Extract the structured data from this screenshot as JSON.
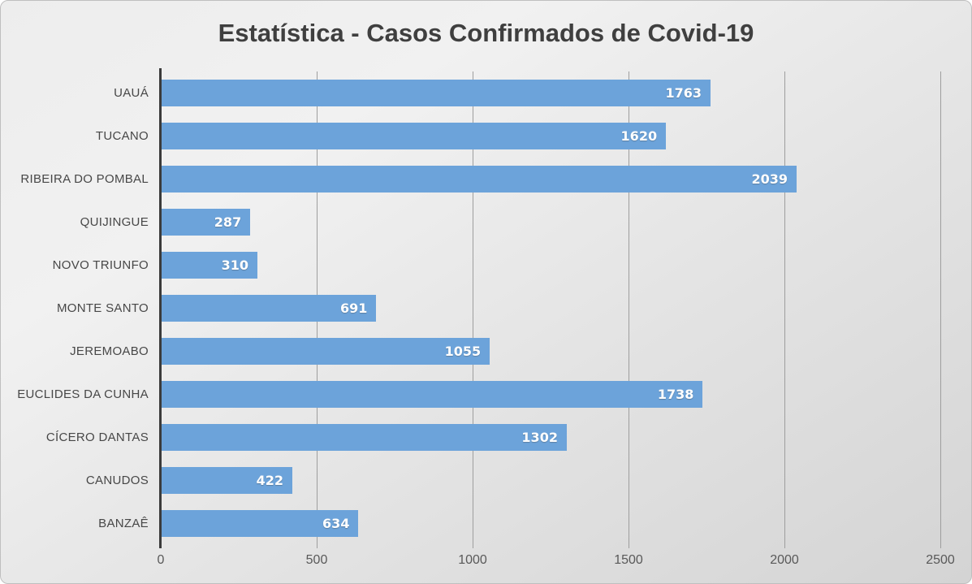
{
  "title": "Estatística - Casos Confirmados de Covid-19",
  "chart_data": {
    "type": "bar",
    "orientation": "horizontal",
    "title": "Estatística - Casos Confirmados de Covid-19",
    "categories": [
      "UAUÁ",
      "TUCANO",
      "RIBEIRA DO POMBAL",
      "QUIJINGUE",
      "NOVO TRIUNFO",
      "MONTE SANTO",
      "JEREMOABO",
      "EUCLIDES DA CUNHA",
      "CÍCERO DANTAS",
      "CANUDOS",
      "BANZAÊ"
    ],
    "values": [
      1763,
      1620,
      2039,
      287,
      310,
      691,
      1055,
      1738,
      1302,
      422,
      634
    ],
    "xlabel": "",
    "ylabel": "",
    "xlim": [
      0,
      2500
    ],
    "xticks": [
      "0",
      "500",
      "1000",
      "1500",
      "2000",
      "2500"
    ],
    "xtick_values": [
      0,
      500,
      1000,
      1500,
      2000,
      2500
    ],
    "grid": true,
    "legend": false,
    "data_labels": "inside-end",
    "colors": {
      "bar": "#6ca3da",
      "axis_line": "#3b3b3b",
      "gridline": "#9e9e9e",
      "title_text": "#3f3f3f",
      "category_text": "#474747",
      "tick_text": "#595959",
      "value_text": "#ffffff",
      "background_light": "#f1f1f1",
      "background_dark": "#d4d4d4"
    }
  }
}
